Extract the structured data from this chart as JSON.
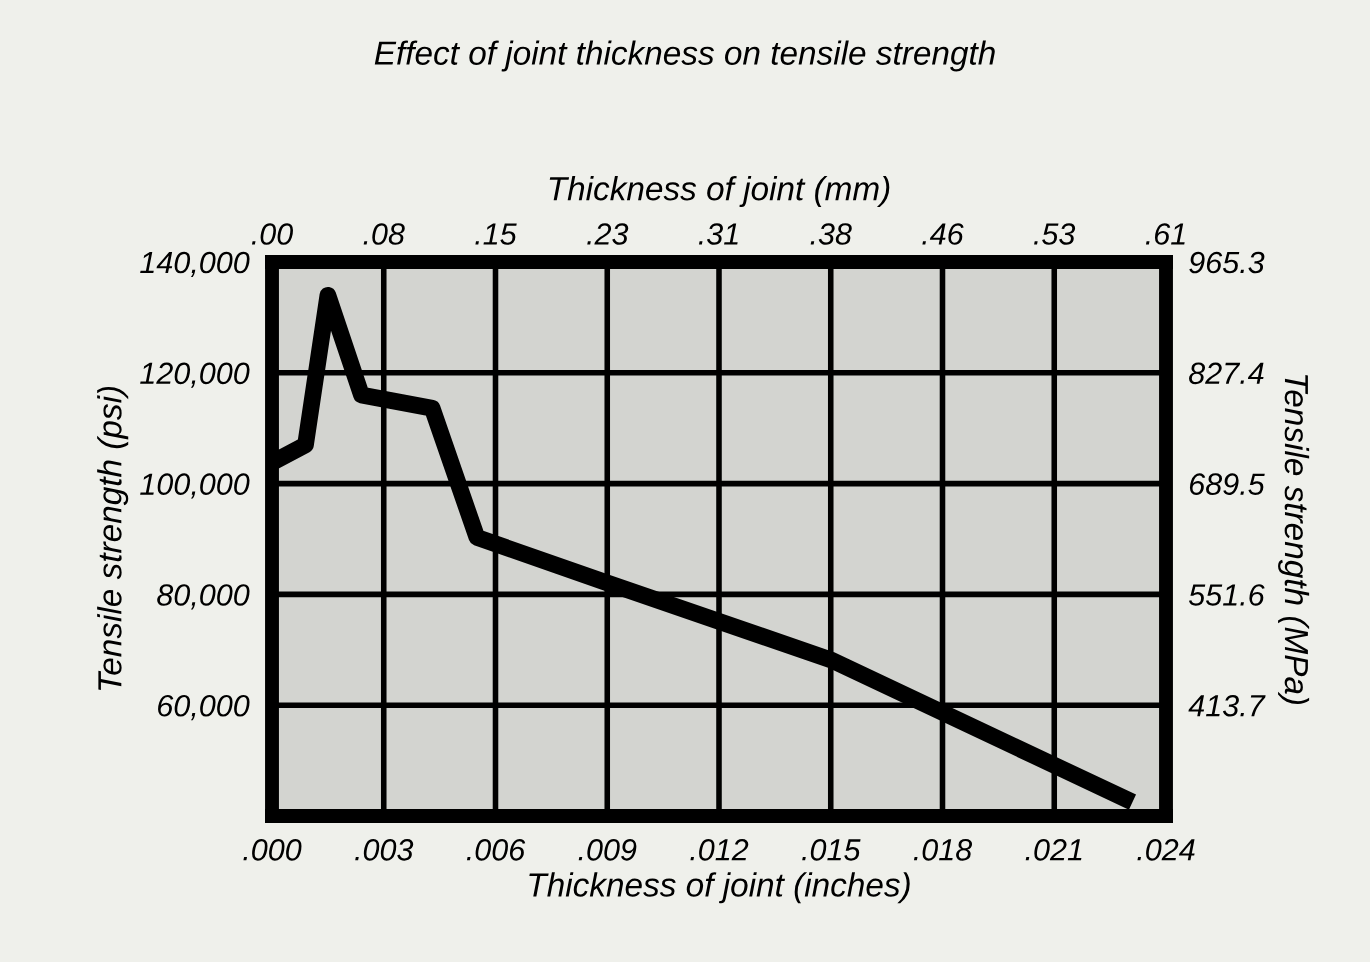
{
  "chart_data": {
    "type": "line",
    "title": "Effect of joint thickness on tensile strength",
    "xlabel": "Thickness of joint (inches)",
    "x2label": "Thickness of joint (mm)",
    "ylabel": "Tensile strength (psi)",
    "y2label": "Tensile strength (MPa)",
    "x": [
      0,
      0.0009,
      0.0015,
      0.0024,
      0.0043,
      0.0055,
      0.0089,
      0.015,
      0.0231
    ],
    "series": [
      {
        "color": "#000000",
        "values": [
          103800,
          107000,
          134000,
          116000,
          113600,
          90300,
          82300,
          68200,
          42500
        ]
      }
    ],
    "xlim": [
      0,
      0.024
    ],
    "xticks": [
      {
        "value": 0,
        "label": ".000"
      },
      {
        "value": 0.003,
        "label": ".003"
      },
      {
        "value": 0.006,
        "label": ".006"
      },
      {
        "value": 0.009,
        "label": ".009"
      },
      {
        "value": 0.012,
        "label": ".012"
      },
      {
        "value": 0.015,
        "label": ".015"
      },
      {
        "value": 0.018,
        "label": ".018"
      },
      {
        "value": 0.021,
        "label": ".021"
      },
      {
        "value": 0.024,
        "label": ".024"
      }
    ],
    "x2lim": [
      0,
      0.6106
    ],
    "x2ticks": [
      {
        "value": 0,
        "label": ".00"
      },
      {
        "value": 0.0763,
        "label": ".08"
      },
      {
        "value": 0.1526,
        "label": ".15"
      },
      {
        "value": 0.229,
        "label": ".23"
      },
      {
        "value": 0.3053,
        "label": ".31"
      },
      {
        "value": 0.3816,
        "label": ".38"
      },
      {
        "value": 0.4579,
        "label": ".46"
      },
      {
        "value": 0.5342,
        "label": ".53"
      },
      {
        "value": 0.6106,
        "label": ".61"
      }
    ],
    "ylim": [
      40000,
      140000
    ],
    "yticks": [
      {
        "value": 60000,
        "label": "60,000"
      },
      {
        "value": 80000,
        "label": "80,000"
      },
      {
        "value": 100000,
        "label": "100,000"
      },
      {
        "value": 120000,
        "label": "120,000"
      },
      {
        "value": 140000,
        "label": "140,000"
      }
    ],
    "y2lim": [
      275.8,
      965.3
    ],
    "y2ticks": [
      413.7,
      551.6,
      689.5,
      827.4,
      965.3
    ],
    "grid": true,
    "marker": "none",
    "line_style": "solid"
  }
}
